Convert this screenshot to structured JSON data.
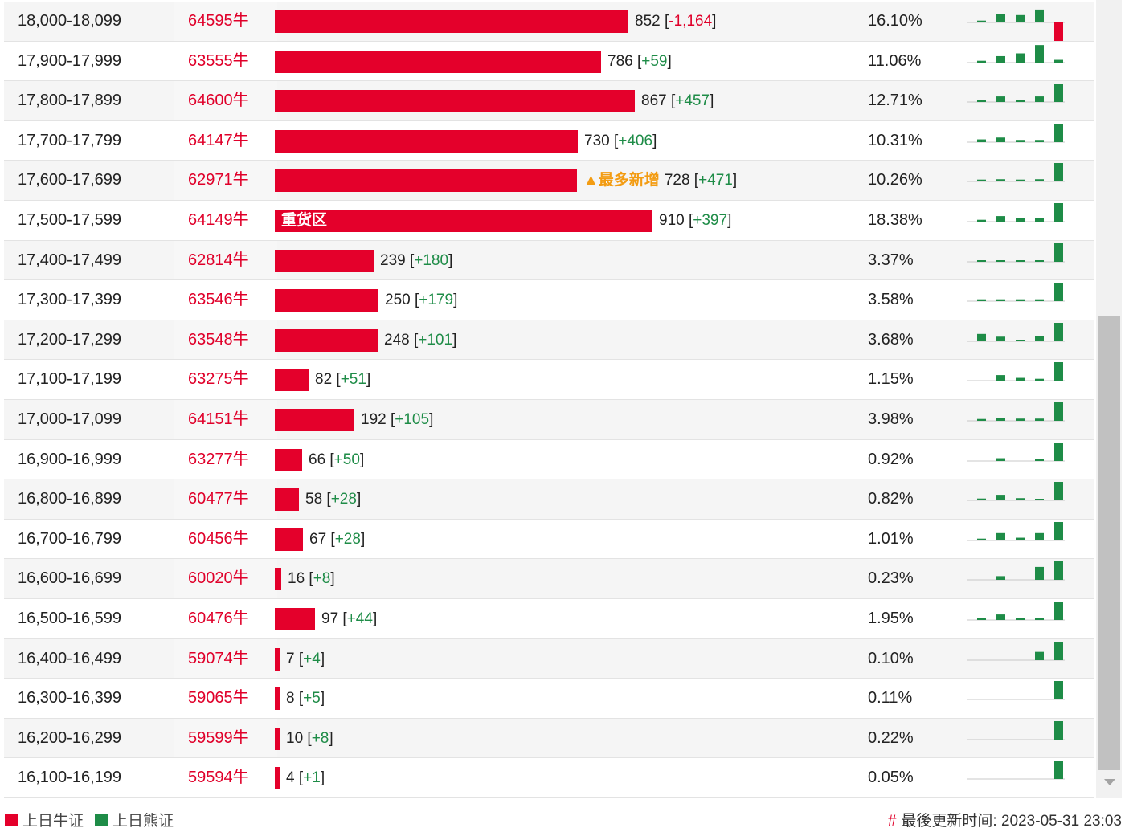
{
  "colors": {
    "bull": "#e4002b",
    "bear": "#1e8c47",
    "hot": "#f39c12"
  },
  "rows": [
    {
      "range": "18,000-18,099",
      "code": "64595牛",
      "count": 852,
      "change": "-1,164",
      "pct": "16.10%",
      "spark": [
        0.1,
        0.45,
        0.4,
        0.7,
        -1.0
      ]
    },
    {
      "range": "17,900-17,999",
      "code": "63555牛",
      "count": 786,
      "change": "+59",
      "pct": "11.06%",
      "spark": [
        0.1,
        0.35,
        0.5,
        0.95,
        0.15
      ]
    },
    {
      "range": "17,800-17,899",
      "code": "64600牛",
      "count": 867,
      "change": "+457",
      "pct": "12.71%",
      "spark": [
        0.1,
        0.3,
        0.1,
        0.3,
        1.0
      ]
    },
    {
      "range": "17,700-17,799",
      "code": "64147牛",
      "count": 730,
      "change": "+406",
      "pct": "10.31%",
      "spark": [
        0.15,
        0.25,
        0.12,
        0.12,
        1.0
      ]
    },
    {
      "range": "17,600-17,699",
      "code": "62971牛",
      "count": 728,
      "change": "+471",
      "pct": "10.26%",
      "spark": [
        0.1,
        0.12,
        0.1,
        0.12,
        1.0
      ],
      "hot": "▲最多新增"
    },
    {
      "range": "17,500-17,599",
      "code": "64149牛",
      "count": 910,
      "change": "+397",
      "pct": "18.38%",
      "spark": [
        0.1,
        0.3,
        0.2,
        0.2,
        1.0
      ],
      "heavy": "重货区"
    },
    {
      "range": "17,400-17,499",
      "code": "62814牛",
      "count": 239,
      "change": "+180",
      "pct": "3.37%",
      "spark": [
        0.08,
        0.08,
        0.08,
        0.08,
        1.0
      ]
    },
    {
      "range": "17,300-17,399",
      "code": "63546牛",
      "count": 250,
      "change": "+179",
      "pct": "3.58%",
      "spark": [
        0.1,
        0.1,
        0.1,
        0.1,
        1.0
      ]
    },
    {
      "range": "17,200-17,299",
      "code": "63548牛",
      "count": 248,
      "change": "+101",
      "pct": "3.68%",
      "spark": [
        0.4,
        0.25,
        0.05,
        0.3,
        1.0
      ]
    },
    {
      "range": "17,100-17,199",
      "code": "63275牛",
      "count": 82,
      "change": "+51",
      "pct": "1.15%",
      "spark": [
        0,
        0.3,
        0.15,
        0.1,
        1.0
      ]
    },
    {
      "range": "17,000-17,099",
      "code": "64151牛",
      "count": 192,
      "change": "+105",
      "pct": "3.98%",
      "spark": [
        0.1,
        0.15,
        0.12,
        0.12,
        1.0
      ]
    },
    {
      "range": "16,900-16,999",
      "code": "63277牛",
      "count": 66,
      "change": "+50",
      "pct": "0.92%",
      "spark": [
        0,
        0.15,
        0,
        0.1,
        1.0
      ]
    },
    {
      "range": "16,800-16,899",
      "code": "60477牛",
      "count": 58,
      "change": "+28",
      "pct": "0.82%",
      "spark": [
        0.1,
        0.3,
        0.12,
        0.05,
        1.0
      ]
    },
    {
      "range": "16,700-16,799",
      "code": "60456牛",
      "count": 67,
      "change": "+28",
      "pct": "1.01%",
      "spark": [
        0.1,
        0.4,
        0.15,
        0.4,
        1.0
      ]
    },
    {
      "range": "16,600-16,699",
      "code": "60020牛",
      "count": 16,
      "change": "+8",
      "pct": "0.23%",
      "spark": [
        0,
        0.2,
        0,
        0.7,
        1.0
      ]
    },
    {
      "range": "16,500-16,599",
      "code": "60476牛",
      "count": 97,
      "change": "+44",
      "pct": "1.95%",
      "spark": [
        0.1,
        0.3,
        0.1,
        0.1,
        1.0
      ]
    },
    {
      "range": "16,400-16,499",
      "code": "59074牛",
      "count": 7,
      "change": "+4",
      "pct": "0.10%",
      "spark": [
        0,
        0,
        0,
        0.45,
        1.0
      ]
    },
    {
      "range": "16,300-16,399",
      "code": "59065牛",
      "count": 8,
      "change": "+5",
      "pct": "0.11%",
      "spark": [
        0,
        0,
        0,
        0,
        1.0
      ]
    },
    {
      "range": "16,200-16,299",
      "code": "59599牛",
      "count": 10,
      "change": "+8",
      "pct": "0.22%",
      "spark": [
        0,
        0,
        0,
        0,
        1.0
      ]
    },
    {
      "range": "16,100-16,199",
      "code": "59594牛",
      "count": 4,
      "change": "+1",
      "pct": "0.05%",
      "spark": [
        0,
        0,
        0,
        0,
        1.0
      ]
    }
  ],
  "legend": {
    "bull_label": "上日牛证",
    "bear_label": "上日熊证"
  },
  "footer": {
    "hash": "#",
    "update_text": "最後更新时间: 2023-05-31 23:03"
  }
}
